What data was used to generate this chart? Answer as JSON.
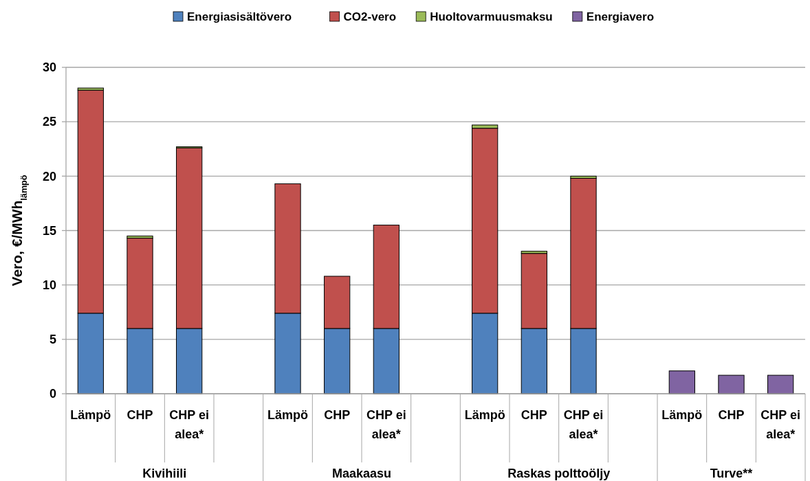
{
  "chart_data": {
    "type": "bar",
    "stacked": true,
    "ylabel": "Vero, €/MWh$_{lämpö}$",
    "categories": [
      "Lämpö",
      "CHP",
      "CHP ei alea*",
      null,
      "Lämpö",
      "CHP",
      "CHP ei alea*",
      null,
      "Lämpö",
      "CHP",
      "CHP ei alea*",
      null,
      "Lämpö",
      "CHP",
      "CHP ei alea*"
    ],
    "series": [
      {
        "name": "Energiasisältövero",
        "color": "#4f81bd",
        "values": [
          7.4,
          6.0,
          6.0,
          null,
          7.4,
          6.0,
          6.0,
          null,
          7.4,
          6.0,
          6.0,
          null,
          null,
          null,
          null
        ]
      },
      {
        "name": "CO2-vero",
        "color": "#c0504d",
        "values": [
          20.5,
          8.3,
          16.6,
          null,
          11.9,
          4.8,
          9.5,
          null,
          17.0,
          6.9,
          13.8,
          null,
          null,
          null,
          null
        ]
      },
      {
        "name": "Huoltovarmuusmaksu",
        "color": "#9bbb59",
        "values": [
          0.2,
          0.2,
          0.1,
          null,
          null,
          null,
          null,
          null,
          0.3,
          0.2,
          0.2,
          null,
          null,
          null,
          null
        ]
      },
      {
        "name": "Energiavero",
        "color": "#8064a2",
        "values": [
          null,
          null,
          null,
          null,
          null,
          null,
          null,
          null,
          null,
          null,
          null,
          null,
          2.1,
          1.7,
          1.7
        ]
      }
    ],
    "annotations": [
      "Kivihiili",
      "Maakaasu",
      "Raskas polttoöljy",
      "Turve**"
    ],
    "ylim": [
      0,
      30
    ],
    "yticks": [
      0,
      5,
      10,
      15,
      20,
      25,
      30
    ],
    "grid": "y",
    "legend": "top"
  }
}
